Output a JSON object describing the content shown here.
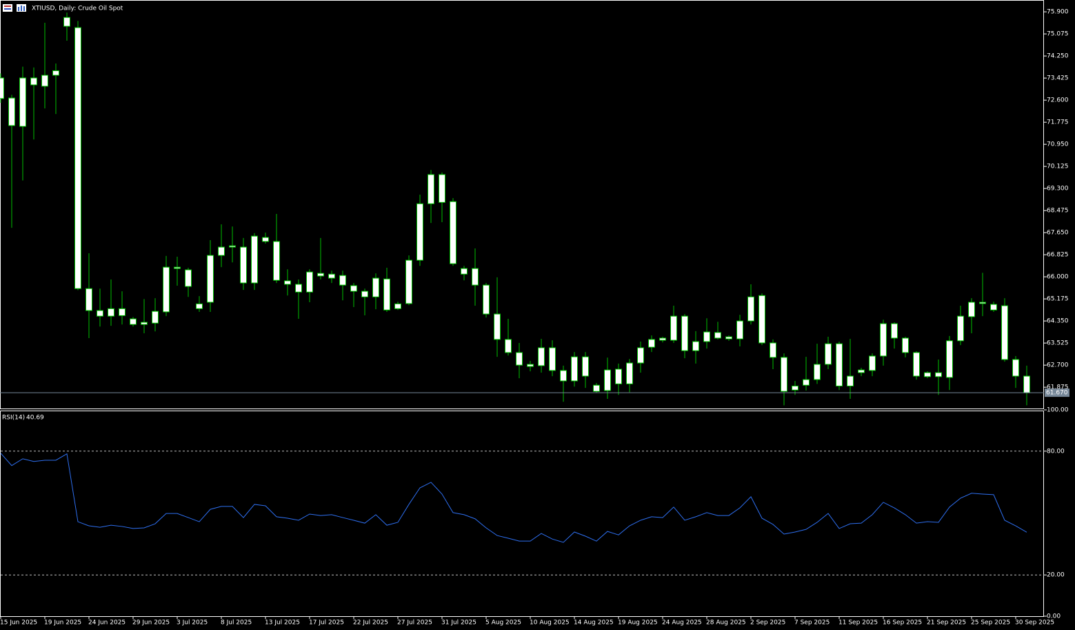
{
  "chart_data": [
    {
      "type": "candlestick",
      "title": "XTIUSD, Daily:  Crude Oil Spot",
      "categories": [
        "15 Jun 2025",
        null,
        null,
        null,
        "19 Jun 2025",
        null,
        null,
        null,
        "24 Jun 2025",
        null,
        null,
        null,
        "29 Jun 2025",
        null,
        null,
        null,
        "3 Jul 2025",
        null,
        null,
        null,
        "8 Jul 2025",
        null,
        null,
        null,
        "13 Jul 2025",
        null,
        null,
        null,
        "17 Jul 2025",
        null,
        null,
        null,
        "22 Jul 2025",
        null,
        null,
        null,
        "27 Jul 2025",
        null,
        null,
        null,
        "31 Jul 2025",
        null,
        null,
        null,
        "5 Aug 2025",
        null,
        null,
        null,
        "10 Aug 2025",
        null,
        null,
        null,
        "14 Aug 2025",
        null,
        null,
        null,
        "19 Aug 2025",
        null,
        null,
        null,
        "24 Aug 2025",
        null,
        null,
        null,
        "28 Aug 2025",
        null,
        null,
        null,
        "2 Sep 2025",
        null,
        null,
        null,
        "7 Sep 2025",
        null,
        null,
        null,
        "11 Sep 2025",
        null,
        null,
        null,
        "16 Sep 2025",
        null,
        null,
        null,
        "21 Sep 2025",
        null,
        null,
        null,
        "25 Sep 2025",
        null,
        null,
        null,
        "30 Sep 2025",
        null
      ],
      "open": [
        73.43,
        72.68,
        71.62,
        73.17,
        73.12,
        73.53,
        75.36,
        75.31,
        65.56,
        64.74,
        64.53,
        64.81,
        64.43,
        64.22,
        64.27,
        64.69,
        66.36,
        66.26,
        64.81,
        65.05,
        66.8,
        67.11,
        67.11,
        65.77,
        67.47,
        67.32,
        65.85,
        65.72,
        65.43,
        66.13,
        65.95,
        66.05,
        65.67,
        65.46,
        65.25,
        65.92,
        64.81,
        65.0,
        66.62,
        68.73,
        69.82,
        68.81,
        66.31,
        66.31,
        65.69,
        64.61,
        63.66,
        63.17,
        62.73,
        62.68,
        63.35,
        62.5,
        62.11,
        63.01,
        61.95,
        61.75,
        62.55,
        62.0,
        62.78,
        63.37,
        63.63,
        63.63,
        64.53,
        63.24,
        63.58,
        63.92,
        63.76,
        63.68,
        64.35,
        65.3,
        63.53,
        62.99,
        61.77,
        61.95,
        62.16,
        62.73,
        63.5,
        61.92,
        62.42,
        62.5,
        63.04,
        64.25,
        63.71,
        63.17,
        62.42,
        62.27,
        62.24,
        63.61,
        64.51,
        65.05,
        64.97,
        64.92,
        62.91,
        62.29
      ],
      "high": [
        73.6,
        72.8,
        73.85,
        73.82,
        75.49,
        73.97,
        75.87,
        75.56,
        66.88,
        65.56,
        65.9,
        65.46,
        64.5,
        65.17,
        65.2,
        66.78,
        66.75,
        66.34,
        65.28,
        67.37,
        67.96,
        67.88,
        67.45,
        67.63,
        67.65,
        68.35,
        66.28,
        65.9,
        66.28,
        67.45,
        66.23,
        66.23,
        65.77,
        65.56,
        66.13,
        66.34,
        65.07,
        66.8,
        69.07,
        69.99,
        69.9,
        68.94,
        66.41,
        67.06,
        65.77,
        65.98,
        64.43,
        63.53,
        62.86,
        63.68,
        63.63,
        62.68,
        63.19,
        63.19,
        62.03,
        62.98,
        62.76,
        62.93,
        63.58,
        63.81,
        63.76,
        64.92,
        64.61,
        63.97,
        64.45,
        64.32,
        63.81,
        64.58,
        65.72,
        65.38,
        63.66,
        63.14,
        62.11,
        63.01,
        63.5,
        63.76,
        63.58,
        63.68,
        62.6,
        63.14,
        64.4,
        64.3,
        63.76,
        63.22,
        62.47,
        62.91,
        63.79,
        64.92,
        65.2,
        66.15,
        65.07,
        65.2,
        63.04,
        62.68
      ],
      "low": [
        72.5,
        67.83,
        69.6,
        71.13,
        72.29,
        72.08,
        74.82,
        65.5,
        63.71,
        64.14,
        64.17,
        64.22,
        64.14,
        63.89,
        63.96,
        64.53,
        65.67,
        65.25,
        64.69,
        64.69,
        66.36,
        66.54,
        65.51,
        65.51,
        67.24,
        65.77,
        65.3,
        64.43,
        65.05,
        65.9,
        65.77,
        65.12,
        64.87,
        64.56,
        64.79,
        64.69,
        64.76,
        64.94,
        66.41,
        68.01,
        68.04,
        66.41,
        65.87,
        64.92,
        64.48,
        63.01,
        63.06,
        62.21,
        62.47,
        62.42,
        62.29,
        61.33,
        61.9,
        61.85,
        61.67,
        61.44,
        61.59,
        61.69,
        62.42,
        63.19,
        63.55,
        63.53,
        62.96,
        62.76,
        63.32,
        63.66,
        63.61,
        63.4,
        64.22,
        63.45,
        62.55,
        61.2,
        61.59,
        61.75,
        62.0,
        62.55,
        61.77,
        61.44,
        62.29,
        62.29,
        62.68,
        63.32,
        62.99,
        62.16,
        62.21,
        61.59,
        61.77,
        63.45,
        63.89,
        64.53,
        64.69,
        62.83,
        61.85,
        61.2
      ],
      "close": [
        72.66,
        71.65,
        73.43,
        73.43,
        73.53,
        73.7,
        75.69,
        65.56,
        64.74,
        64.53,
        64.81,
        64.55,
        64.22,
        64.3,
        64.71,
        66.36,
        66.31,
        65.64,
        64.99,
        66.8,
        67.11,
        67.16,
        65.77,
        67.52,
        67.32,
        65.87,
        65.72,
        65.43,
        66.18,
        66.03,
        66.1,
        65.69,
        65.46,
        65.25,
        65.95,
        64.76,
        64.99,
        66.62,
        68.73,
        69.82,
        68.78,
        66.49,
        66.1,
        65.69,
        64.61,
        63.66,
        63.17,
        62.7,
        62.65,
        63.35,
        62.5,
        62.11,
        63.01,
        62.29,
        61.72,
        62.52,
        62.0,
        62.78,
        63.35,
        63.66,
        63.71,
        64.53,
        63.24,
        63.58,
        63.94,
        63.71,
        63.68,
        64.35,
        65.25,
        63.53,
        62.99,
        61.72,
        61.92,
        62.16,
        62.73,
        63.5,
        61.92,
        62.29,
        62.52,
        63.04,
        64.25,
        63.71,
        63.17,
        62.29,
        62.27,
        62.42,
        63.61,
        64.53,
        65.05,
        65.0,
        64.76,
        62.91,
        62.29,
        61.67
      ],
      "current_price": {
        "value": 61.67,
        "label": "61.670"
      },
      "ylim": [
        61.08,
        76.29
      ],
      "yticks": [
        {
          "value": 75.9,
          "label": "75.900"
        },
        {
          "value": 75.075,
          "label": "75.075"
        },
        {
          "value": 74.25,
          "label": "74.250"
        },
        {
          "value": 73.425,
          "label": "73.425"
        },
        {
          "value": 72.6,
          "label": "72.600"
        },
        {
          "value": 71.775,
          "label": "71.775"
        },
        {
          "value": 70.95,
          "label": "70.950"
        },
        {
          "value": 70.125,
          "label": "70.125"
        },
        {
          "value": 69.3,
          "label": "69.300"
        },
        {
          "value": 68.475,
          "label": "68.475"
        },
        {
          "value": 67.65,
          "label": "67.650"
        },
        {
          "value": 66.825,
          "label": "66.825"
        },
        {
          "value": 66.0,
          "label": "66.000"
        },
        {
          "value": 65.175,
          "label": "65.175"
        },
        {
          "value": 64.35,
          "label": "64.350"
        },
        {
          "value": 63.525,
          "label": "63.525"
        },
        {
          "value": 62.7,
          "label": "62.700"
        },
        {
          "value": 61.875,
          "label": "61.875"
        }
      ],
      "wick_color": "#00c000",
      "body_color": "#ffffff",
      "grid": false
    },
    {
      "type": "line",
      "title": "RSI(14)",
      "series": [
        {
          "name": "RSI(14)",
          "color": "#2e6ff0",
          "values": [
            79,
            73,
            76.3,
            75,
            75.6,
            75.6,
            78.7,
            45.8,
            43.8,
            43.1,
            44.1,
            43.5,
            42.5,
            42.8,
            44.8,
            49.8,
            49.8,
            47.8,
            45.8,
            51.8,
            53.2,
            53.2,
            47.8,
            54.2,
            53.5,
            48.2,
            47.5,
            46.5,
            49.5,
            48.8,
            49.2,
            47.8,
            46.5,
            45.1,
            49.2,
            44.1,
            45.5,
            54.2,
            62.2,
            64.9,
            59.2,
            50.2,
            49.2,
            47.2,
            42.8,
            39.1,
            37.8,
            36.4,
            36.4,
            40.1,
            37.4,
            35.8,
            40.8,
            38.8,
            36.4,
            41.1,
            39.4,
            43.8,
            46.5,
            48.2,
            47.8,
            52.9,
            46.5,
            48.2,
            50.2,
            48.8,
            48.8,
            52.5,
            57.9,
            47.5,
            44.5,
            39.8,
            40.8,
            42.1,
            45.5,
            49.8,
            42.5,
            44.8,
            45.1,
            49.2,
            55.2,
            52.5,
            49.2,
            45.1,
            45.8,
            45.5,
            52.9,
            57.2,
            59.6,
            59.2,
            58.9,
            46.5,
            43.8,
            40.69
          ]
        }
      ],
      "ylim": [
        0,
        100
      ],
      "yticks": [
        {
          "value": 100,
          "label": "100.00"
        },
        {
          "value": 80,
          "label": "80.00"
        },
        {
          "value": 20,
          "label": "20.00"
        },
        {
          "value": 0,
          "label": "0.00"
        }
      ],
      "levels": [
        80,
        20
      ]
    }
  ]
}
